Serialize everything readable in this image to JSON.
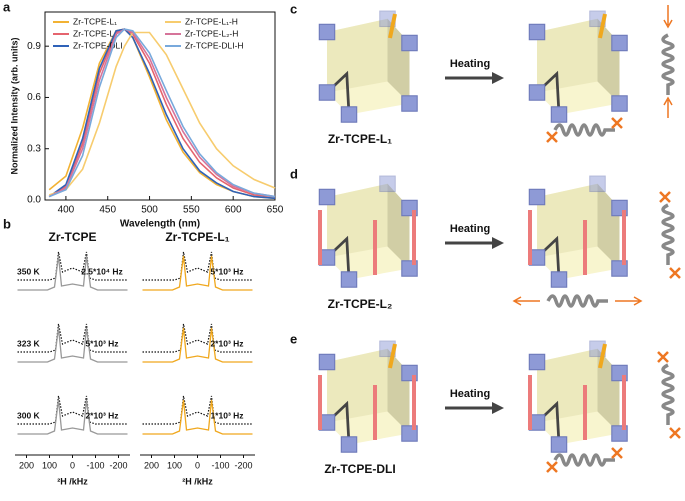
{
  "chart_data": {
    "type": "line",
    "panel": "a",
    "x": [
      380,
      400,
      420,
      440,
      460,
      470,
      480,
      500,
      520,
      540,
      560,
      580,
      600,
      625,
      650
    ],
    "series": [
      {
        "name": "Zr-TCPE-L₁",
        "color": "#f2b233",
        "values": [
          0.06,
          0.14,
          0.42,
          0.8,
          0.99,
          1.0,
          0.95,
          0.72,
          0.47,
          0.28,
          0.16,
          0.09,
          0.05,
          0.02,
          0.01
        ]
      },
      {
        "name": "Zr-TCPE-L₂",
        "color": "#e5646e",
        "values": [
          0.02,
          0.08,
          0.33,
          0.74,
          0.98,
          1.0,
          0.97,
          0.8,
          0.56,
          0.36,
          0.22,
          0.13,
          0.07,
          0.03,
          0.02
        ]
      },
      {
        "name": "Zr-TCPE-DLI",
        "color": "#2f62b8",
        "values": [
          0.02,
          0.09,
          0.36,
          0.77,
          0.99,
          1.0,
          0.95,
          0.74,
          0.5,
          0.3,
          0.17,
          0.1,
          0.05,
          0.02,
          0.01
        ]
      },
      {
        "name": "Zr-TCPE-L₁-H",
        "color": "#f7cc6e",
        "values": [
          0.03,
          0.06,
          0.18,
          0.45,
          0.78,
          0.9,
          0.98,
          0.98,
          0.85,
          0.65,
          0.45,
          0.3,
          0.2,
          0.12,
          0.07
        ]
      },
      {
        "name": "Zr-TCPE-L₂-H",
        "color": "#d6749a",
        "values": [
          0.02,
          0.07,
          0.3,
          0.7,
          0.97,
          1.0,
          0.98,
          0.83,
          0.6,
          0.4,
          0.25,
          0.15,
          0.08,
          0.04,
          0.02
        ]
      },
      {
        "name": "Zr-TCPE-DLI-H",
        "color": "#78a9dc",
        "values": [
          0.02,
          0.06,
          0.26,
          0.66,
          0.95,
          1.0,
          0.99,
          0.86,
          0.64,
          0.43,
          0.27,
          0.16,
          0.09,
          0.04,
          0.02
        ]
      }
    ],
    "xlim": [
      375,
      650
    ],
    "ylim": [
      0,
      1.1
    ],
    "xticks": [
      400,
      450,
      500,
      550,
      600,
      650
    ],
    "yticks": [
      {
        "value": 0,
        "label": "0.0"
      },
      0.3,
      0.6,
      0.9
    ],
    "x_label": "Wavelength (nm)",
    "y_label": "Normalized Intensity (arb. units)"
  },
  "nmr": {
    "panel": "b",
    "columns": [
      "Zr-TCPE",
      "Zr-TCPE-L₁"
    ],
    "temperatures": [
      "350 K",
      "323 K",
      "300 K"
    ],
    "rates": [
      [
        "2.5*10⁴ Hz",
        "5*10³ Hz"
      ],
      [
        "5*10³ Hz",
        "2*10³ Hz"
      ],
      [
        "2*10³ Hz",
        "1*10³ Hz"
      ]
    ],
    "xlim": [
      250,
      -250
    ],
    "xticks": [
      200,
      100,
      0,
      -100,
      -200
    ],
    "x_label": "²H /kHz"
  },
  "schemes": [
    {
      "panel": "c",
      "name": "Zr-TCPE-L₁",
      "arrow": "Heating"
    },
    {
      "panel": "d",
      "name": "Zr-TCPE-L₂",
      "arrow": "Heating"
    },
    {
      "panel": "e",
      "name": "Zr-TCPE-DLI",
      "arrow": "Heating"
    }
  ]
}
